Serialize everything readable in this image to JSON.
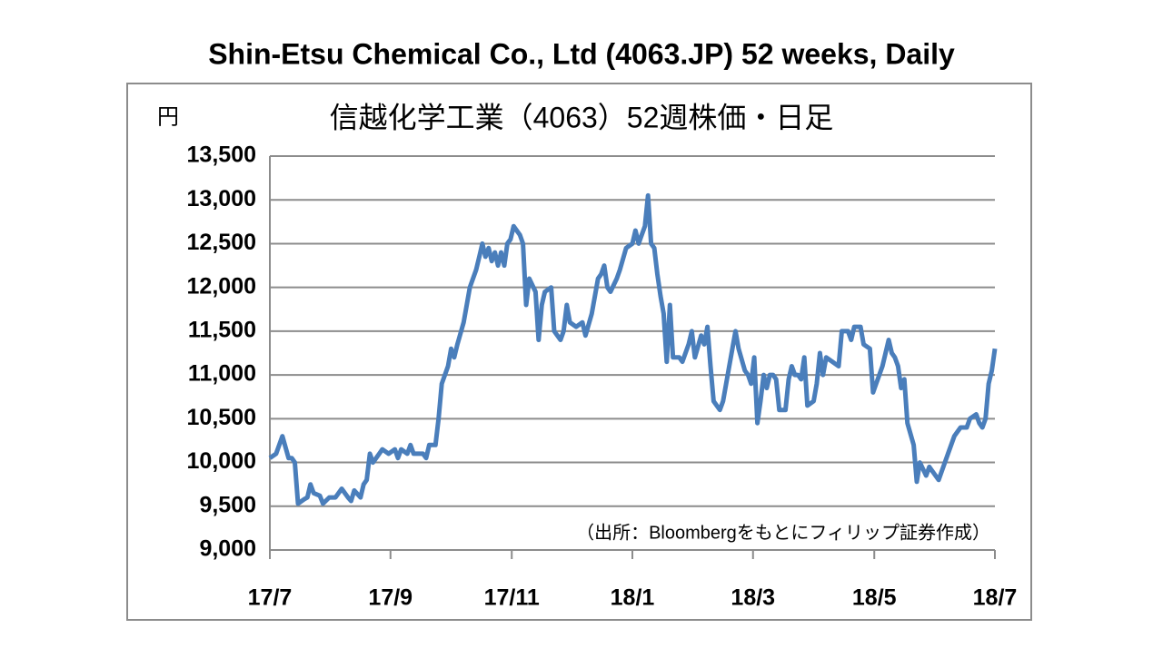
{
  "chart_data": {
    "type": "line",
    "title": "Shin-Etsu Chemical Co., Ltd (4063.JP) 52 weeks, Daily",
    "subtitle": "信越化学工業（4063）52週株価・日足",
    "y_unit": "円",
    "note": "（出所：Bloombergをもとにフィリップ証券作成）",
    "color": "#4a7ebb",
    "grid": true,
    "xlim": [
      0,
      11.6
    ],
    "xticks": [
      {
        "value": 0,
        "label": "17/7"
      },
      {
        "value": 1.93,
        "label": "17/9"
      },
      {
        "value": 3.87,
        "label": "17/11"
      },
      {
        "value": 5.8,
        "label": "18/1"
      },
      {
        "value": 7.73,
        "label": "18/3"
      },
      {
        "value": 9.67,
        "label": "18/5"
      },
      {
        "value": 11.6,
        "label": "18/7"
      }
    ],
    "ylim": [
      9000,
      13500
    ],
    "yticks": [
      {
        "value": 9000,
        "label": "9,000"
      },
      {
        "value": 9500,
        "label": "9,500"
      },
      {
        "value": 10000,
        "label": "10,000"
      },
      {
        "value": 10500,
        "label": "10,500"
      },
      {
        "value": 11000,
        "label": "11,000"
      },
      {
        "value": 11500,
        "label": "11,500"
      },
      {
        "value": 12000,
        "label": "12,000"
      },
      {
        "value": 12500,
        "label": "12,500"
      },
      {
        "value": 13000,
        "label": "13,000"
      },
      {
        "value": 13500,
        "label": "13,500"
      }
    ],
    "x": [
      0,
      0.1,
      0.2,
      0.3,
      0.35,
      0.4,
      0.45,
      0.55,
      0.6,
      0.65,
      0.7,
      0.8,
      0.85,
      0.95,
      1.05,
      1.15,
      1.25,
      1.3,
      1.35,
      1.45,
      1.5,
      1.55,
      1.6,
      1.65,
      1.75,
      1.8,
      1.9,
      2.0,
      2.05,
      2.1,
      2.2,
      2.25,
      2.3,
      2.45,
      2.5,
      2.55,
      2.65,
      2.7,
      2.75,
      2.85,
      2.9,
      2.95,
      3.0,
      3.1,
      3.15,
      3.2,
      3.3,
      3.35,
      3.4,
      3.45,
      3.5,
      3.55,
      3.6,
      3.65,
      3.7,
      3.75,
      3.8,
      3.85,
      3.9,
      3.95,
      4.0,
      4.05,
      4.1,
      4.15,
      4.25,
      4.3,
      4.35,
      4.4,
      4.5,
      4.55,
      4.65,
      4.7,
      4.75,
      4.8,
      4.9,
      5.0,
      5.05,
      5.15,
      5.25,
      5.3,
      5.35,
      5.4,
      5.45,
      5.55,
      5.6,
      5.7,
      5.8,
      5.85,
      5.9,
      5.95,
      6.0,
      6.05,
      6.1,
      6.15,
      6.2,
      6.25,
      6.3,
      6.35,
      6.4,
      6.45,
      6.55,
      6.6,
      6.7,
      6.75,
      6.8,
      6.9,
      6.95,
      7.0,
      7.05,
      7.1,
      7.2,
      7.25,
      7.3,
      7.35,
      7.45,
      7.5,
      7.6,
      7.65,
      7.7,
      7.75,
      7.8,
      7.85,
      7.9,
      7.95,
      8.0,
      8.05,
      8.1,
      8.15,
      8.25,
      8.3,
      8.35,
      8.4,
      8.45,
      8.5,
      8.55,
      8.6,
      8.7,
      8.75,
      8.8,
      8.85,
      8.9,
      9.0,
      9.1,
      9.15,
      9.25,
      9.3,
      9.35,
      9.45,
      9.5,
      9.6,
      9.65,
      9.7,
      9.8,
      9.9,
      9.95,
      10.0,
      10.05,
      10.1,
      10.15,
      10.2,
      10.3,
      10.35,
      10.4,
      10.5,
      10.55,
      10.6,
      10.7,
      10.75,
      10.85,
      10.95,
      11.0,
      11.05,
      11.15,
      11.2,
      11.3,
      11.35,
      11.4,
      11.45,
      11.5,
      11.55,
      11.6
    ],
    "values": [
      10050,
      10100,
      10300,
      10050,
      10050,
      10000,
      9530,
      9580,
      9600,
      9750,
      9650,
      9620,
      9530,
      9600,
      9600,
      9700,
      9600,
      9560,
      9680,
      9600,
      9750,
      9800,
      10100,
      10000,
      10100,
      10150,
      10100,
      10150,
      10050,
      10150,
      10100,
      10200,
      10100,
      10100,
      10050,
      10200,
      10200,
      10500,
      10900,
      11100,
      11300,
      11200,
      11350,
      11600,
      11800,
      12000,
      12200,
      12350,
      12500,
      12350,
      12450,
      12300,
      12400,
      12250,
      12400,
      12250,
      12500,
      12550,
      12700,
      12650,
      12600,
      12500,
      11800,
      12100,
      11950,
      11400,
      11800,
      11950,
      12000,
      11500,
      11400,
      11500,
      11800,
      11600,
      11550,
      11600,
      11450,
      11700,
      12100,
      12150,
      12250,
      12000,
      11950,
      12100,
      12200,
      12450,
      12500,
      12650,
      12500,
      12600,
      12700,
      13050,
      12500,
      12450,
      12150,
      11900,
      11700,
      11150,
      11800,
      11200,
      11200,
      11150,
      11350,
      11500,
      11200,
      11450,
      11350,
      11550,
      11100,
      10700,
      10600,
      10700,
      10900,
      11100,
      11500,
      11300,
      11050,
      11000,
      10900,
      11200,
      10450,
      10700,
      11000,
      10850,
      11000,
      11000,
      10950,
      10600,
      10600,
      10950,
      11100,
      11000,
      11000,
      10950,
      11200,
      10650,
      10700,
      10900,
      11250,
      11000,
      11200,
      11150,
      11100,
      11500,
      11500,
      11400,
      11550,
      11550,
      11350,
      11300,
      10800,
      10900,
      11100,
      11400,
      11250,
      11200,
      11100,
      10850,
      10950,
      10450,
      10200,
      9780,
      10000,
      9850,
      9950,
      9900,
      9800,
      9900,
      10100,
      10300,
      10350,
      10400,
      10400,
      10500,
      10550,
      10450,
      10400,
      10500,
      10900,
      11050,
      11300
    ]
  }
}
